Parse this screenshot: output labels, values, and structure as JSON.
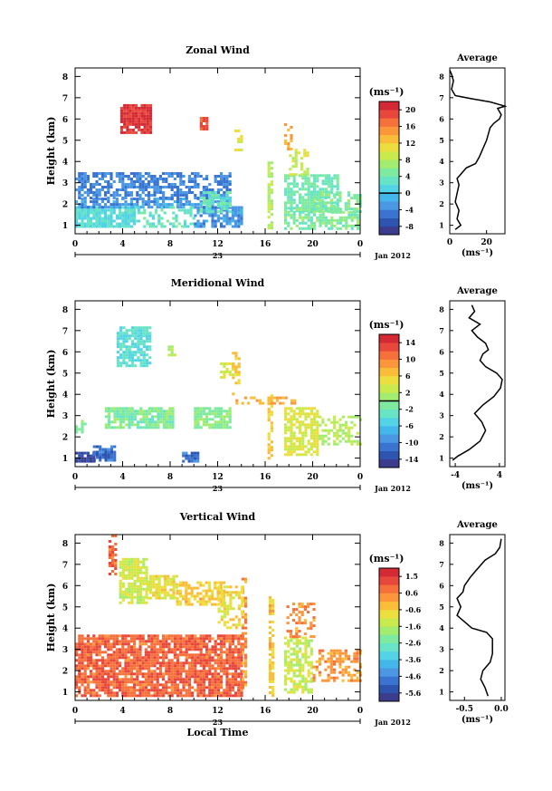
{
  "figure": {
    "panels": [
      {
        "title": "Zonal Wind",
        "ylabel": "Height (km)",
        "yticks": [
          "1",
          "2",
          "3",
          "4",
          "5",
          "6",
          "7",
          "8"
        ],
        "xticks": [
          "0",
          "4",
          "8",
          "12",
          "16",
          "20",
          "0"
        ],
        "day_label": "23",
        "date_label": "Jan 2012",
        "colorbar": {
          "unit": "(ms⁻¹)",
          "ticks": [
            "-8",
            "-4",
            "0",
            "4",
            "8",
            "12",
            "16",
            "20"
          ],
          "colors": [
            "#3b3c8c",
            "#2d55b0",
            "#3a74d0",
            "#4b97e3",
            "#43b7ea",
            "#53d3e6",
            "#67e3c6",
            "#7deaa0",
            "#a2ec6f",
            "#c9ea4d",
            "#ecde3e",
            "#f9bd3a",
            "#fb973a",
            "#f6703b",
            "#e8473c",
            "#d42a35"
          ],
          "contour_level": "0"
        },
        "average": {
          "title": "Average",
          "xticks": [
            "0",
            "20"
          ],
          "xlabel": "(ms⁻¹)"
        }
      },
      {
        "title": "Meridional Wind",
        "ylabel": "Height (km)",
        "yticks": [
          "1",
          "2",
          "3",
          "4",
          "5",
          "6",
          "7",
          "8"
        ],
        "xticks": [
          "0",
          "4",
          "8",
          "12",
          "16",
          "20",
          "0"
        ],
        "day_label": "23",
        "date_label": "Jan 2012",
        "colorbar": {
          "unit": "(ms⁻¹)",
          "ticks": [
            "-14",
            "-10",
            "-6",
            "-2",
            "2",
            "6",
            "10",
            "14"
          ],
          "colors": [
            "#3b3c8c",
            "#2d55b0",
            "#3a74d0",
            "#4b97e3",
            "#43b7ea",
            "#53d3e6",
            "#67e3c6",
            "#7deaa0",
            "#a2ec6f",
            "#c9ea4d",
            "#ecde3e",
            "#f9bd3a",
            "#fb973a",
            "#f6703b",
            "#e8473c",
            "#d42a35"
          ],
          "contour_level": "0"
        },
        "average": {
          "title": "Average",
          "xticks": [
            "-4",
            "4"
          ],
          "xlabel": "(ms⁻¹)"
        }
      },
      {
        "title": "Vertical Wind",
        "ylabel": "Height (km)",
        "yticks": [
          "1",
          "2",
          "3",
          "4",
          "5",
          "6",
          "7",
          "8"
        ],
        "xticks": [
          "0",
          "4",
          "8",
          "12",
          "16",
          "20",
          "0"
        ],
        "day_label": "23",
        "date_label": "Jan 2012",
        "xlabel": "Local Time",
        "colorbar": {
          "unit": "(ms⁻¹)",
          "ticks": [
            "-5.6",
            "-4.6",
            "-3.6",
            "-2.6",
            "-1.6",
            "-0.6",
            "0.6",
            "1.5"
          ],
          "colors": [
            "#3b3c8c",
            "#2d55b0",
            "#3a74d0",
            "#4b97e3",
            "#43b7ea",
            "#53d3e6",
            "#67e3c6",
            "#7deaa0",
            "#a2ec6f",
            "#c9ea4d",
            "#ecde3e",
            "#f9bd3a",
            "#fb973a",
            "#f6703b",
            "#e8473c",
            "#d42a35"
          ],
          "contour_level": ""
        },
        "average": {
          "title": "Average",
          "xticks": [
            "-0.5",
            "0.0"
          ],
          "xlabel": "(ms⁻¹)"
        }
      }
    ]
  },
  "chart_data": [
    {
      "type": "heatmap",
      "title": "Zonal Wind",
      "ylabel": "Height (km)",
      "xlim_hours": [
        0,
        24
      ],
      "ylim": [
        0.6,
        8.4
      ],
      "blocks": [
        {
          "x0": 0.0,
          "x1": 5.0,
          "y0": 0.9,
          "y1": 1.9,
          "v": 2,
          "density": 0.88
        },
        {
          "x0": 0.0,
          "x1": 13.0,
          "y0": 1.9,
          "y1": 2.3,
          "v": -3,
          "density": 0.7
        },
        {
          "x0": 0.0,
          "x1": 13.0,
          "y0": 2.3,
          "y1": 3.5,
          "v": -4,
          "density": 0.62
        },
        {
          "x0": 5.0,
          "x1": 10.0,
          "y0": 0.9,
          "y1": 1.9,
          "v": 3,
          "density": 0.35
        },
        {
          "x0": 10.0,
          "x1": 14.0,
          "y0": 0.9,
          "y1": 1.9,
          "v": -3,
          "density": 0.75
        },
        {
          "x0": 10.5,
          "x1": 13.0,
          "y0": 1.7,
          "y1": 2.6,
          "v": 3,
          "density": 0.7
        },
        {
          "x0": 3.8,
          "x1": 6.3,
          "y0": 5.3,
          "y1": 6.7,
          "v": 20,
          "density": 0.95
        },
        {
          "x0": 10.5,
          "x1": 11.2,
          "y0": 5.5,
          "y1": 6.1,
          "v": 18,
          "density": 0.95
        },
        {
          "x0": 13.4,
          "x1": 14.0,
          "y0": 4.6,
          "y1": 5.5,
          "v": 10,
          "density": 0.65
        },
        {
          "x0": 16.2,
          "x1": 16.5,
          "y0": 0.9,
          "y1": 4.0,
          "v": 8,
          "density": 0.7
        },
        {
          "x0": 17.6,
          "x1": 18.2,
          "y0": 4.6,
          "y1": 5.8,
          "v": 14,
          "density": 0.55
        },
        {
          "x0": 17.6,
          "x1": 22.0,
          "y0": 1.7,
          "y1": 3.4,
          "v": 4,
          "density": 0.72
        },
        {
          "x0": 17.6,
          "x1": 23.8,
          "y0": 0.9,
          "y1": 1.8,
          "v": 5,
          "density": 0.62
        },
        {
          "x0": 18.0,
          "x1": 19.5,
          "y0": 3.4,
          "y1": 4.6,
          "v": 9,
          "density": 0.5
        },
        {
          "x0": 20.0,
          "x1": 24.0,
          "y0": 1.6,
          "y1": 2.6,
          "v": 5,
          "density": 0.45
        }
      ],
      "average_profile": {
        "xlim": [
          0,
          30
        ],
        "points": [
          [
            3,
            0.8
          ],
          [
            6,
            1.0
          ],
          [
            4,
            1.3
          ],
          [
            5,
            1.7
          ],
          [
            3,
            2.1
          ],
          [
            4,
            2.5
          ],
          [
            5,
            2.9
          ],
          [
            4,
            3.2
          ],
          [
            7,
            3.5
          ],
          [
            9,
            3.7
          ],
          [
            14,
            3.9
          ],
          [
            16,
            4.2
          ],
          [
            18,
            4.6
          ],
          [
            20,
            5.0
          ],
          [
            21,
            5.3
          ],
          [
            22,
            5.6
          ],
          [
            24,
            5.8
          ],
          [
            27,
            6.0
          ],
          [
            28,
            6.2
          ],
          [
            26,
            6.5
          ],
          [
            30,
            6.6
          ],
          [
            22,
            6.8
          ],
          [
            12,
            6.95
          ],
          [
            3,
            7.1
          ],
          [
            1,
            7.4
          ],
          [
            2,
            7.8
          ],
          [
            1,
            8.1
          ],
          [
            0,
            8.3
          ]
        ]
      }
    },
    {
      "type": "heatmap",
      "title": "Meridional Wind",
      "ylabel": "Height (km)",
      "xlim_hours": [
        0,
        24
      ],
      "ylim": [
        0.6,
        8.4
      ],
      "blocks": [
        {
          "x0": 0.0,
          "x1": 1.5,
          "y0": 0.9,
          "y1": 1.3,
          "v": -14,
          "density": 0.9
        },
        {
          "x0": 1.5,
          "x1": 3.4,
          "y0": 0.9,
          "y1": 1.6,
          "v": -11,
          "density": 0.75
        },
        {
          "x0": 9.0,
          "x1": 10.4,
          "y0": 0.9,
          "y1": 1.3,
          "v": -11,
          "density": 0.8
        },
        {
          "x0": 2.5,
          "x1": 8.2,
          "y0": 2.4,
          "y1": 3.4,
          "v": -1,
          "density": 0.82
        },
        {
          "x0": 0.0,
          "x1": 0.9,
          "y0": 2.2,
          "y1": 2.8,
          "v": 0,
          "density": 0.7
        },
        {
          "x0": 10.0,
          "x1": 13.0,
          "y0": 2.4,
          "y1": 3.4,
          "v": 0,
          "density": 0.75
        },
        {
          "x0": 3.5,
          "x1": 6.2,
          "y0": 5.4,
          "y1": 7.2,
          "v": -4,
          "density": 0.8
        },
        {
          "x0": 7.8,
          "x1": 8.4,
          "y0": 5.8,
          "y1": 6.3,
          "v": 2,
          "density": 0.7
        },
        {
          "x0": 12.2,
          "x1": 13.8,
          "y0": 4.8,
          "y1": 5.5,
          "v": 4,
          "density": 0.5
        },
        {
          "x0": 13.2,
          "x1": 13.9,
          "y0": 4.0,
          "y1": 6.0,
          "v": 6,
          "density": 0.45
        },
        {
          "x0": 16.2,
          "x1": 16.6,
          "y0": 1.0,
          "y1": 4.0,
          "v": 6,
          "density": 0.6
        },
        {
          "x0": 17.6,
          "x1": 20.5,
          "y0": 1.2,
          "y1": 3.4,
          "v": 4,
          "density": 0.72
        },
        {
          "x0": 20.5,
          "x1": 24.0,
          "y0": 1.6,
          "y1": 3.0,
          "v": 2,
          "density": 0.45
        },
        {
          "x0": 13.5,
          "x1": 18.5,
          "y0": 3.6,
          "y1": 3.9,
          "v": 8,
          "density": 0.5
        }
      ],
      "average_profile": {
        "xlim": [
          -5,
          5
        ],
        "points": [
          [
            -4.5,
            0.9
          ],
          [
            -3.5,
            1.1
          ],
          [
            -1.5,
            1.4
          ],
          [
            0.5,
            1.8
          ],
          [
            1.5,
            2.3
          ],
          [
            0.8,
            2.7
          ],
          [
            -0.5,
            3.1
          ],
          [
            1.0,
            3.5
          ],
          [
            3.0,
            3.9
          ],
          [
            4.2,
            4.3
          ],
          [
            4.5,
            4.7
          ],
          [
            3.5,
            5.0
          ],
          [
            1.5,
            5.3
          ],
          [
            0.5,
            5.6
          ],
          [
            1.0,
            5.9
          ],
          [
            2.0,
            6.1
          ],
          [
            1.5,
            6.4
          ],
          [
            0.0,
            6.7
          ],
          [
            -1.0,
            7.0
          ],
          [
            0.5,
            7.3
          ],
          [
            -1.5,
            7.6
          ],
          [
            -0.5,
            7.9
          ],
          [
            -1.0,
            8.2
          ]
        ]
      }
    },
    {
      "type": "heatmap",
      "title": "Vertical Wind",
      "ylabel": "Height (km)",
      "xlabel": "Local Time",
      "xlim_hours": [
        0,
        24
      ],
      "ylim": [
        0.6,
        8.4
      ],
      "blocks": [
        {
          "x0": 0.0,
          "x1": 14.0,
          "y0": 0.8,
          "y1": 3.7,
          "v": 0.9,
          "density": 0.82
        },
        {
          "x0": 14.0,
          "x1": 14.3,
          "y0": 1.2,
          "y1": 6.5,
          "v": 0.3,
          "density": 0.6
        },
        {
          "x0": 3.7,
          "x1": 6.0,
          "y0": 5.2,
          "y1": 7.3,
          "v": -1.2,
          "density": 0.8
        },
        {
          "x0": 2.8,
          "x1": 3.5,
          "y0": 6.5,
          "y1": 8.4,
          "v": 0.8,
          "density": 0.6
        },
        {
          "x0": 6.0,
          "x1": 8.5,
          "y0": 5.4,
          "y1": 6.5,
          "v": -0.9,
          "density": 0.75
        },
        {
          "x0": 8.5,
          "x1": 12.5,
          "y0": 5.1,
          "y1": 6.2,
          "v": -0.5,
          "density": 0.65
        },
        {
          "x0": 12.0,
          "x1": 14.0,
          "y0": 4.0,
          "y1": 6.0,
          "v": -0.8,
          "density": 0.5
        },
        {
          "x0": 16.3,
          "x1": 16.6,
          "y0": 0.8,
          "y1": 5.5,
          "v": -0.4,
          "density": 0.7
        },
        {
          "x0": 17.6,
          "x1": 20.0,
          "y0": 1.0,
          "y1": 3.6,
          "v": -1.3,
          "density": 0.65
        },
        {
          "x0": 20.0,
          "x1": 24.0,
          "y0": 1.5,
          "y1": 3.0,
          "v": 0.2,
          "density": 0.45
        },
        {
          "x0": 17.8,
          "x1": 20.0,
          "y0": 3.6,
          "y1": 5.2,
          "v": 0.4,
          "density": 0.4
        }
      ],
      "average_profile": {
        "xlim": [
          -0.7,
          0.05
        ],
        "points": [
          [
            -0.18,
            0.8
          ],
          [
            -0.22,
            1.2
          ],
          [
            -0.28,
            1.6
          ],
          [
            -0.25,
            2.0
          ],
          [
            -0.15,
            2.4
          ],
          [
            -0.12,
            2.8
          ],
          [
            -0.12,
            3.2
          ],
          [
            -0.12,
            3.5
          ],
          [
            -0.2,
            3.8
          ],
          [
            -0.4,
            4.0
          ],
          [
            -0.5,
            4.3
          ],
          [
            -0.6,
            4.6
          ],
          [
            -0.55,
            5.0
          ],
          [
            -0.6,
            5.4
          ],
          [
            -0.52,
            5.7
          ],
          [
            -0.5,
            6.0
          ],
          [
            -0.42,
            6.4
          ],
          [
            -0.32,
            6.8
          ],
          [
            -0.22,
            7.2
          ],
          [
            -0.08,
            7.5
          ],
          [
            -0.02,
            7.8
          ],
          [
            0.0,
            8.2
          ]
        ]
      }
    }
  ]
}
